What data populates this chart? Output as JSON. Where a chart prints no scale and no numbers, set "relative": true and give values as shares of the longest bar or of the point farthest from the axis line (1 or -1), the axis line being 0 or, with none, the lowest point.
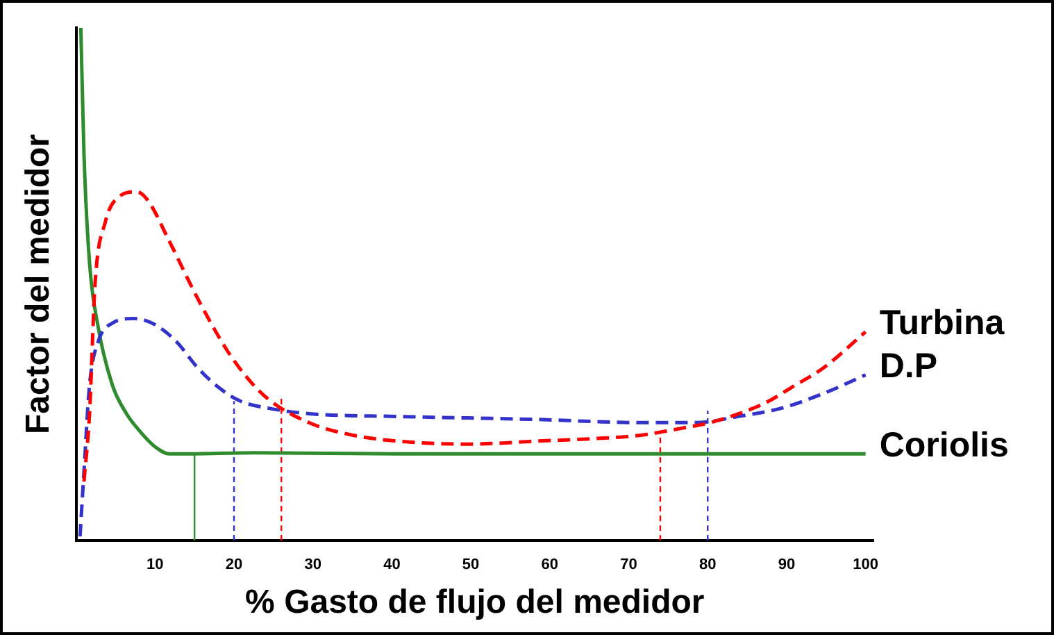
{
  "chart_data": {
    "type": "line",
    "relative": true,
    "xlabel": "% Gasto de flujo del medidor",
    "ylabel": "Factor del medidor",
    "xlim": [
      0,
      101
    ],
    "xticks": [
      10,
      20,
      30,
      40,
      50,
      60,
      70,
      80,
      90,
      100
    ],
    "grid": false,
    "legend": false,
    "series": [
      {
        "name": "Turbina",
        "color": "#ff0000",
        "line_style": "dashed",
        "x": [
          1.0,
          1.7,
          2.4,
          3.7,
          5.3,
          7.7,
          9.1,
          11.8,
          15.4,
          19.0,
          21.7,
          24.4,
          29.8,
          35.2,
          40.6,
          49.6,
          58.6,
          65.9,
          71.3,
          76.7,
          80.3,
          83.9,
          87.5,
          91.1,
          94.7,
          100
        ],
        "values": [
          0.115,
          0.247,
          0.5,
          0.621,
          0.669,
          0.68,
          0.663,
          0.584,
          0.472,
          0.374,
          0.317,
          0.275,
          0.228,
          0.205,
          0.194,
          0.188,
          0.194,
          0.199,
          0.205,
          0.219,
          0.23,
          0.247,
          0.27,
          0.303,
          0.337,
          0.407
        ]
      },
      {
        "name": "D.P",
        "color": "#3333cc",
        "line_style": "dashed",
        "x": [
          0.5,
          1.0,
          1.7,
          2.8,
          4.6,
          7.3,
          10.0,
          12.7,
          15.4,
          18.1,
          20.8,
          24.4,
          29.8,
          40.6,
          58.6,
          71.3,
          78.5,
          83.9,
          89.3,
          94.7,
          100
        ],
        "values": [
          0.008,
          0.135,
          0.303,
          0.388,
          0.424,
          0.433,
          0.421,
          0.388,
          0.337,
          0.298,
          0.272,
          0.258,
          0.247,
          0.242,
          0.236,
          0.23,
          0.23,
          0.242,
          0.258,
          0.287,
          0.323
        ]
      },
      {
        "name": "Coriolis",
        "color": "#2e8b2e",
        "line_style": "solid",
        "x": [
          0.6,
          1.0,
          1.7,
          2.8,
          4.6,
          6.4,
          8.2,
          10.0,
          11.8,
          13.6,
          22.6,
          40.6,
          100
        ],
        "values": [
          1,
          0.753,
          0.542,
          0.416,
          0.303,
          0.247,
          0.211,
          0.183,
          0.169,
          0.169,
          0.171,
          0.169,
          0.169
        ]
      },
      {
        "color": "#2e8b2e",
        "line_style": "solid",
        "x": [
          15,
          15
        ],
        "values": [
          0,
          0.169
        ]
      },
      {
        "color": "#3333cc",
        "line_style": "dashed",
        "x": [
          20,
          20
        ],
        "values": [
          0,
          0.272
        ]
      },
      {
        "color": "#ff0000",
        "line_style": "dashed",
        "x": [
          26,
          26
        ],
        "values": [
          0,
          0.284
        ]
      },
      {
        "color": "#ff0000",
        "line_style": "dashed",
        "x": [
          74,
          74
        ],
        "values": [
          0,
          0.211
        ]
      },
      {
        "color": "#3333cc",
        "line_style": "dashed",
        "x": [
          80,
          80
        ],
        "values": [
          0,
          0.253
        ]
      }
    ]
  }
}
